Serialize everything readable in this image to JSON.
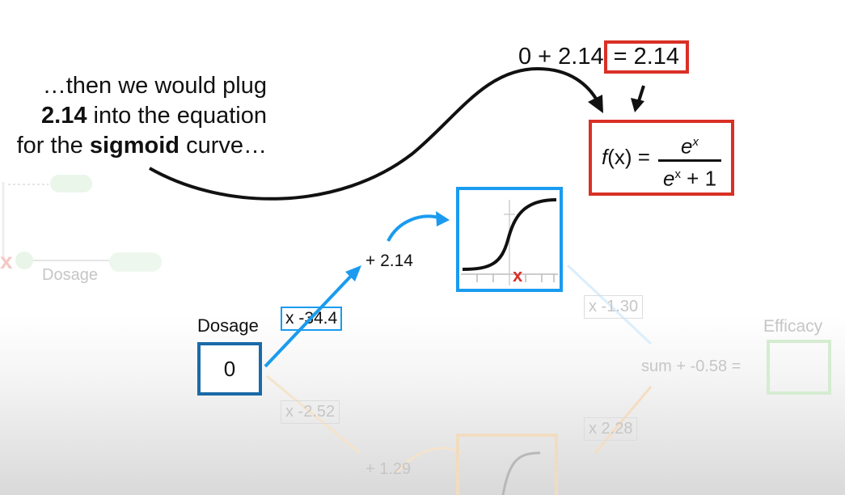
{
  "caption": {
    "line1": "…then we would plug",
    "line2_bold": "2.14",
    "line2_rest": " into the equation",
    "line3_pre": "for the ",
    "line3_bold": "sigmoid",
    "line3_post": " curve…"
  },
  "equation": {
    "left": "0 + 2.14",
    "result": "= 2.14"
  },
  "formula": {
    "lhs_f": "f",
    "lhs_x": "(x)",
    "equals": " = ",
    "numerator_base": "e",
    "numerator_exp": "x",
    "denominator_base": "e",
    "denominator_exp": "x",
    "denominator_rest": " + 1"
  },
  "network": {
    "input_label": "Dosage",
    "input_value": "0",
    "weight_top": "x -34.4",
    "bias_top": "+ 2.14",
    "faded_weight_bottom": "x -2.52",
    "faded_bias_bottom": "+ 1.29",
    "faded_weight_out_top": "x -1.30",
    "faded_weight_out_bottom": "x 2.28",
    "faded_sum": "sum + -0.58 =",
    "faded_output_label": "Efficacy",
    "faded_axis_label": "Dosage"
  },
  "sigmoid_marker": "x",
  "colors": {
    "red": "#d93025",
    "blue": "#1a9bef",
    "dark_blue": "#1a6aa8",
    "faded_orange": "#f5d9b5",
    "faded_green": "#cfe9c6"
  }
}
